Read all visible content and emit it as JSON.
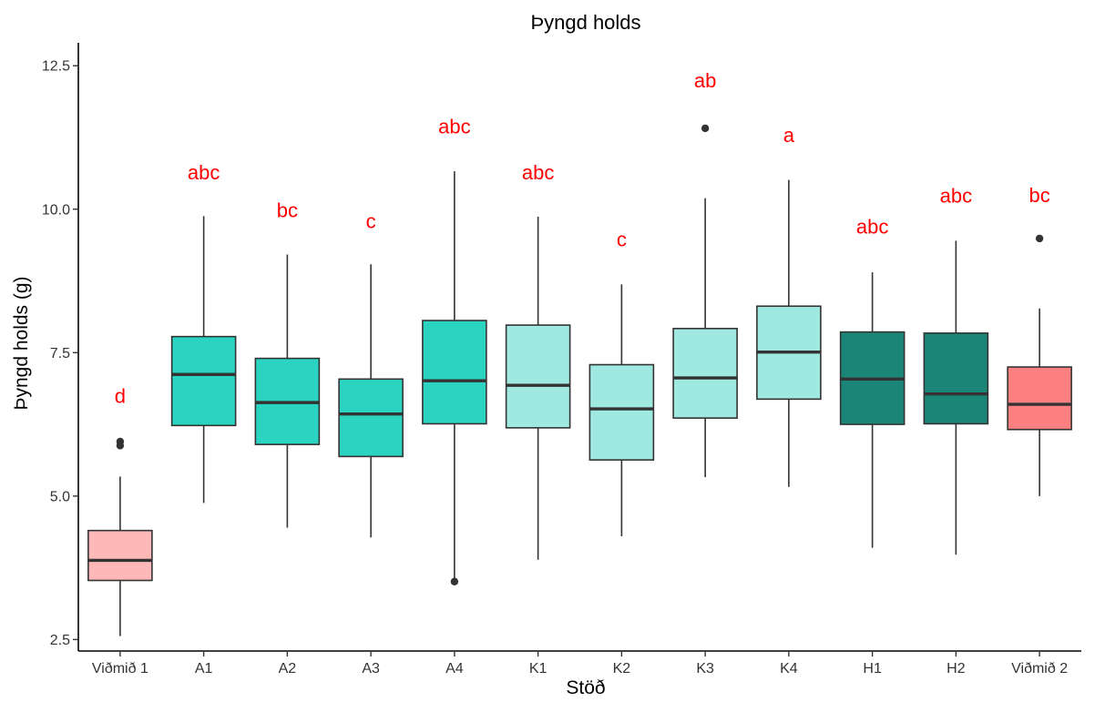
{
  "chart_data": {
    "type": "box",
    "title": "Þyngd holds",
    "xlabel": "Stöð",
    "ylabel": "Þyngd holds (g)",
    "ylim": [
      2.3,
      12.9
    ],
    "yticks": [
      2.5,
      5.0,
      7.5,
      10.0,
      12.5
    ],
    "ytick_labels": [
      "2.5",
      "5.0",
      "7.5",
      "10.0",
      "12.5"
    ],
    "grid": false,
    "legend": "none",
    "categories": [
      "Viðmið 1",
      "A1",
      "A2",
      "A3",
      "A4",
      "K1",
      "K2",
      "K3",
      "K4",
      "H1",
      "H2",
      "Viðmið 2"
    ],
    "boxes": [
      {
        "name": "Viðmið 1",
        "whisker_low": 2.56,
        "q1": 3.53,
        "median": 3.88,
        "q3": 4.4,
        "whisker_high": 5.34,
        "outliers": [
          5.88,
          5.95
        ],
        "color": "#ffb8b8",
        "letter": "d"
      },
      {
        "name": "A1",
        "whisker_low": 4.88,
        "q1": 6.23,
        "median": 7.12,
        "q3": 7.78,
        "whisker_high": 9.88,
        "outliers": [],
        "color": "#2bd4c1",
        "letter": "abc"
      },
      {
        "name": "A2",
        "whisker_low": 4.45,
        "q1": 5.9,
        "median": 6.63,
        "q3": 7.4,
        "whisker_high": 9.21,
        "outliers": [],
        "color": "#2bd4c1",
        "letter": "bc"
      },
      {
        "name": "A3",
        "whisker_low": 4.28,
        "q1": 5.69,
        "median": 6.43,
        "q3": 7.04,
        "whisker_high": 9.04,
        "outliers": [],
        "color": "#2bd4c1",
        "letter": "c"
      },
      {
        "name": "A4",
        "whisker_low": 3.51,
        "q1": 6.26,
        "median": 7.01,
        "q3": 8.06,
        "whisker_high": 10.66,
        "outliers": [
          3.51
        ],
        "color": "#2bd4c1",
        "letter": "abc"
      },
      {
        "name": "K1",
        "whisker_low": 3.89,
        "q1": 6.19,
        "median": 6.93,
        "q3": 7.98,
        "whisker_high": 9.87,
        "outliers": [],
        "color": "#9fe9e1",
        "letter": "abc"
      },
      {
        "name": "K2",
        "whisker_low": 4.3,
        "q1": 5.63,
        "median": 6.52,
        "q3": 7.29,
        "whisker_high": 8.69,
        "outliers": [],
        "color": "#9fe9e1",
        "letter": "c"
      },
      {
        "name": "K3",
        "whisker_low": 5.33,
        "q1": 6.36,
        "median": 7.06,
        "q3": 7.92,
        "whisker_high": 10.19,
        "outliers": [
          11.41
        ],
        "color": "#9fe9e1",
        "letter": "ab"
      },
      {
        "name": "K4",
        "whisker_low": 5.16,
        "q1": 6.69,
        "median": 7.51,
        "q3": 8.31,
        "whisker_high": 10.51,
        "outliers": [],
        "color": "#9fe9e1",
        "letter": "a"
      },
      {
        "name": "H1",
        "whisker_low": 4.1,
        "q1": 6.25,
        "median": 7.04,
        "q3": 7.86,
        "whisker_high": 8.9,
        "outliers": [],
        "color": "#1b8677",
        "letter": "abc"
      },
      {
        "name": "H2",
        "whisker_low": 3.98,
        "q1": 6.26,
        "median": 6.78,
        "q3": 7.84,
        "whisker_high": 9.45,
        "outliers": [],
        "color": "#1b8677",
        "letter": "abc"
      },
      {
        "name": "Viðmið 2",
        "whisker_low": 5.0,
        "q1": 6.16,
        "median": 6.6,
        "q3": 7.25,
        "whisker_high": 8.27,
        "outliers": [
          9.49
        ],
        "color": "#ff8080",
        "letter": "bc"
      }
    ],
    "letter_values": [
      6.75,
      10.65,
      9.99,
      9.8,
      11.45,
      10.65,
      9.48,
      12.25,
      11.3,
      9.7,
      10.24,
      10.25
    ],
    "letter_color": "#ff0000"
  }
}
